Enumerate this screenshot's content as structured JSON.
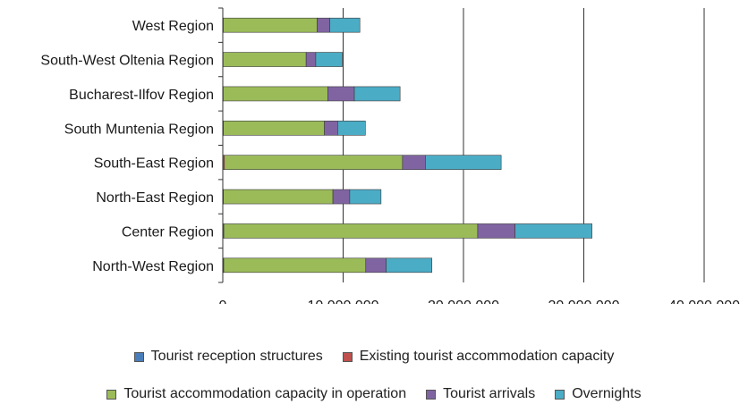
{
  "chart_data": {
    "type": "bar",
    "orientation": "horizontal",
    "stacked": true,
    "categories": [
      "West Region",
      "South-West Oltenia Region",
      "Bucharest-Ilfov Region",
      "South Muntenia Region",
      "South-East Region",
      "North-East Region",
      "Center Region",
      "North-West Region"
    ],
    "series": [
      {
        "name": "Tourist reception structures",
        "color": "#4a7ebb",
        "values": [
          1100,
          1000,
          500,
          1200,
          2400,
          1700,
          3700,
          2600
        ]
      },
      {
        "name": "Existing tourist accommodation capacity",
        "color": "#c0504d",
        "values": [
          40000,
          25000,
          32000,
          45000,
          130000,
          48000,
          80000,
          75000
        ]
      },
      {
        "name": "Tourist accommodation capacity in operation",
        "color": "#9bbb59",
        "values": [
          7800000,
          6900000,
          8700000,
          8400000,
          14800000,
          9100000,
          21100000,
          11800000
        ]
      },
      {
        "name": "Tourist arrivals",
        "color": "#8064a2",
        "values": [
          1050000,
          800000,
          2200000,
          1100000,
          1900000,
          1400000,
          3100000,
          1700000
        ]
      },
      {
        "name": "Overnights",
        "color": "#4bacc6",
        "values": [
          2500000,
          2200000,
          3800000,
          2300000,
          6300000,
          2600000,
          6400000,
          3800000
        ]
      }
    ],
    "xlim": [
      0,
      40000000
    ],
    "xticks": [
      "0",
      "10,000,000",
      "20,000,000",
      "30,000,000",
      "40,000,000"
    ],
    "grid": true,
    "legend_position": "bottom"
  },
  "legend": {
    "row1": [
      "Tourist reception structures",
      "Existing tourist accommodation capacity"
    ],
    "row2": [
      "Tourist accommodation capacity in operation",
      "Tourist arrivals",
      "Overnights"
    ],
    "colors": {
      "Tourist reception structures": "#4a7ebb",
      "Existing tourist accommodation capacity": "#c0504d",
      "Tourist accommodation capacity in operation": "#9bbb59",
      "Tourist arrivals": "#8064a2",
      "Overnights": "#4bacc6"
    }
  }
}
